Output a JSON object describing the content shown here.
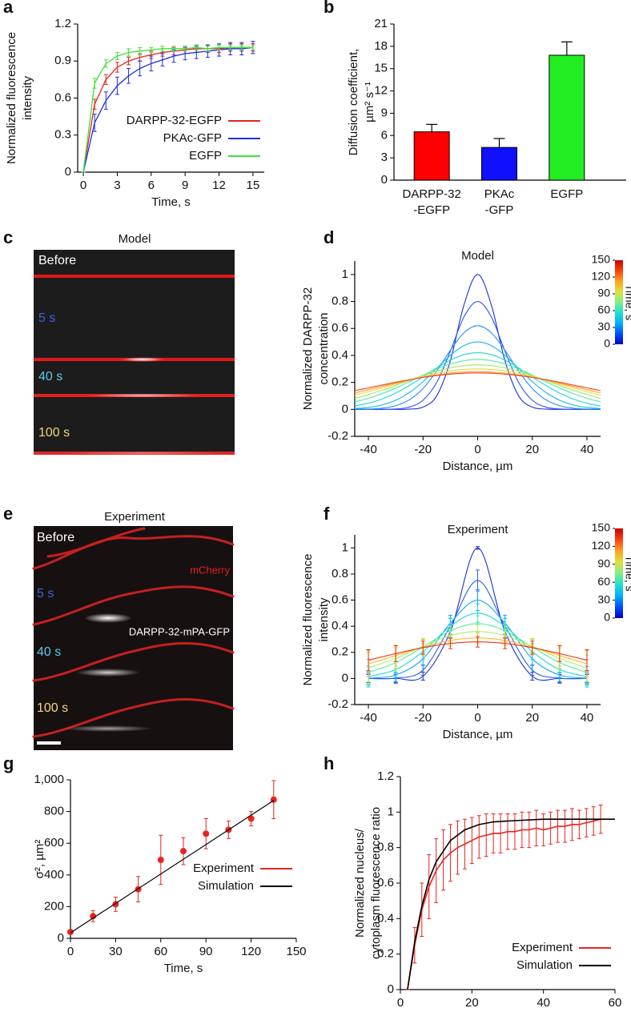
{
  "chart_data": [
    {
      "panel": "a",
      "type": "line",
      "xlabel": "Time, s",
      "ylabel": [
        "Normalized fluorescence",
        "intensity"
      ],
      "x": [
        0,
        1,
        2,
        3,
        4,
        5,
        6,
        7,
        8,
        9,
        10,
        11,
        12,
        13,
        14,
        15
      ],
      "xlim": [
        -0.5,
        16
      ],
      "xticks": [
        0,
        3,
        6,
        9,
        12,
        15
      ],
      "ylim": [
        0,
        1.2
      ],
      "yticks": [
        0,
        0.3,
        0.6,
        0.9,
        1.2
      ],
      "legend": "lower right",
      "series": [
        {
          "name": "DARPP-32-EGFP",
          "color": "#e8231f",
          "values": [
            0,
            0.55,
            0.75,
            0.85,
            0.9,
            0.93,
            0.95,
            0.97,
            0.98,
            0.99,
            1.0,
            1.0,
            1.0,
            1.01,
            1.01,
            1.01
          ],
          "errors": [
            0,
            0.04,
            0.04,
            0.04,
            0.03,
            0.03,
            0.03,
            0.03,
            0.03,
            0.03,
            0.03,
            0.03,
            0.03,
            0.03,
            0.03,
            0.03
          ]
        },
        {
          "name": "PKAc-GFP",
          "color": "#1f2ee0",
          "values": [
            0,
            0.4,
            0.58,
            0.7,
            0.78,
            0.84,
            0.88,
            0.91,
            0.94,
            0.96,
            0.97,
            0.98,
            0.99,
            1.0,
            1.0,
            1.01
          ],
          "errors": [
            0,
            0.07,
            0.07,
            0.07,
            0.06,
            0.06,
            0.06,
            0.05,
            0.05,
            0.05,
            0.05,
            0.05,
            0.05,
            0.05,
            0.05,
            0.05
          ]
        },
        {
          "name": "EGFP",
          "color": "#3ee23a",
          "values": [
            0,
            0.72,
            0.88,
            0.94,
            0.97,
            0.98,
            0.99,
            1.0,
            1.0,
            1.0,
            1.01,
            1.0,
            1.01,
            1.01,
            1.01,
            1.01
          ],
          "errors": [
            0,
            0.04,
            0.03,
            0.03,
            0.03,
            0.03,
            0.02,
            0.02,
            0.02,
            0.02,
            0.02,
            0.02,
            0.02,
            0.02,
            0.02,
            0.02
          ]
        }
      ]
    },
    {
      "panel": "b",
      "type": "bar",
      "ylabel": [
        "Diffusion coefficient,",
        "µm² s⁻¹"
      ],
      "categories": [
        [
          "DARPP-32",
          "-EGFP"
        ],
        [
          "PKAc",
          "-GFP"
        ],
        [
          "EGFP"
        ]
      ],
      "values": [
        6.5,
        4.4,
        16.8
      ],
      "errors": [
        1.0,
        1.2,
        1.8
      ],
      "colors": [
        "#ff0000",
        "#1010ff",
        "#22ee22"
      ],
      "ylim": [
        0,
        21
      ],
      "yticks": [
        0,
        3,
        6,
        9,
        12,
        15,
        18,
        21
      ]
    },
    {
      "panel": "d",
      "type": "line",
      "title": "Model",
      "smooth": true,
      "xlabel": "Distance, µm",
      "ylabel": [
        "Normalized DARPP-32",
        "concentration"
      ],
      "x": [
        -45,
        -40,
        -35,
        -30,
        -25,
        -20,
        -15,
        -10,
        -5,
        0,
        5,
        10,
        15,
        20,
        25,
        30,
        35,
        40,
        45
      ],
      "xlim": [
        -45,
        45
      ],
      "xticks": [
        -40,
        -20,
        0,
        20,
        40
      ],
      "ylim": [
        -0.2,
        1.1
      ],
      "yticks": [
        -0.2,
        0,
        0.2,
        0.4,
        0.6,
        0.8,
        1
      ],
      "colorbar": {
        "label": "Time, s",
        "lim": [
          0,
          150
        ],
        "ticks": [
          0,
          30,
          60,
          90,
          120,
          150
        ],
        "colors": [
          "#0000c8",
          "#0050ff",
          "#00b0ff",
          "#20e0d0",
          "#80f080",
          "#e0e040",
          "#ffa020",
          "#ff4010",
          "#c80000"
        ]
      },
      "series": [
        {
          "color": "#1a2fd8",
          "values": [
            0,
            0,
            0,
            0,
            0.002,
            0.017,
            0.1,
            0.36,
            0.775,
            1,
            0.775,
            0.36,
            0.1,
            0.017,
            0.002,
            0,
            0,
            0,
            0
          ]
        },
        {
          "color": "#2a55f0",
          "values": [
            0,
            0,
            0,
            0.003,
            0.017,
            0.068,
            0.199,
            0.431,
            0.686,
            0.8,
            0.686,
            0.431,
            0.199,
            0.068,
            0.017,
            0.003,
            0,
            0,
            0
          ]
        },
        {
          "color": "#1e8ef5",
          "values": [
            0.001,
            0.002,
            0.009,
            0.027,
            0.071,
            0.155,
            0.284,
            0.438,
            0.568,
            0.62,
            0.568,
            0.438,
            0.284,
            0.155,
            0.071,
            0.027,
            0.009,
            0.002,
            0.001
          ]
        },
        {
          "color": "#10b8f0",
          "values": [
            0.006,
            0.014,
            0.033,
            0.068,
            0.125,
            0.206,
            0.303,
            0.4,
            0.473,
            0.5,
            0.473,
            0.4,
            0.303,
            0.206,
            0.125,
            0.068,
            0.033,
            0.014,
            0.006
          ]
        },
        {
          "color": "#20d8d0",
          "values": [
            0.025,
            0.046,
            0.077,
            0.121,
            0.177,
            0.241,
            0.307,
            0.365,
            0.406,
            0.42,
            0.406,
            0.365,
            0.307,
            0.241,
            0.177,
            0.121,
            0.077,
            0.046,
            0.025
          ]
        },
        {
          "color": "#50e8a0",
          "values": [
            0.055,
            0.082,
            0.116,
            0.158,
            0.205,
            0.254,
            0.299,
            0.337,
            0.361,
            0.37,
            0.361,
            0.337,
            0.299,
            0.254,
            0.205,
            0.158,
            0.116,
            0.082,
            0.055
          ]
        },
        {
          "color": "#a0e860",
          "values": [
            0.082,
            0.11,
            0.142,
            0.178,
            0.215,
            0.251,
            0.283,
            0.308,
            0.324,
            0.33,
            0.324,
            0.308,
            0.283,
            0.251,
            0.215,
            0.178,
            0.142,
            0.11,
            0.082
          ]
        },
        {
          "color": "#e8d840",
          "values": [
            0.105,
            0.131,
            0.159,
            0.188,
            0.217,
            0.244,
            0.267,
            0.285,
            0.296,
            0.3,
            0.296,
            0.285,
            0.267,
            0.244,
            0.217,
            0.188,
            0.159,
            0.131,
            0.105
          ]
        },
        {
          "color": "#ff9a28",
          "values": [
            0.122,
            0.146,
            0.17,
            0.194,
            0.217,
            0.238,
            0.255,
            0.269,
            0.277,
            0.28,
            0.277,
            0.269,
            0.255,
            0.238,
            0.217,
            0.194,
            0.17,
            0.146,
            0.122
          ]
        },
        {
          "color": "#f04018",
          "values": [
            0.139,
            0.16,
            0.18,
            0.201,
            0.22,
            0.237,
            0.251,
            0.261,
            0.268,
            0.27,
            0.268,
            0.261,
            0.251,
            0.237,
            0.22,
            0.201,
            0.18,
            0.16,
            0.139
          ]
        }
      ]
    },
    {
      "panel": "f",
      "type": "line",
      "title": "Experiment",
      "smooth": true,
      "xlabel": "Distance, µm",
      "ylabel": [
        "Normalized fluorescence",
        "intensity"
      ],
      "x": [
        -40,
        -30,
        -20,
        -10,
        0,
        10,
        20,
        30,
        40
      ],
      "xlim": [
        -45,
        45
      ],
      "xticks": [
        -40,
        -20,
        0,
        20,
        40
      ],
      "ylim": [
        -0.2,
        1.1
      ],
      "yticks": [
        -0.2,
        0,
        0.2,
        0.4,
        0.6,
        0.8,
        1
      ],
      "colorbar": {
        "label": "Time, s",
        "lim": [
          0,
          150
        ],
        "ticks": [
          0,
          30,
          60,
          90,
          120,
          150
        ],
        "colors": [
          "#0000c8",
          "#0050ff",
          "#00b0ff",
          "#20e0d0",
          "#80f080",
          "#e0e040",
          "#ffa020",
          "#ff4010",
          "#c80000"
        ]
      },
      "series": [
        {
          "color": "#1a2fd8",
          "values": [
            0,
            0,
            0.017,
            0.36,
            1,
            0.36,
            0.017,
            0,
            0
          ],
          "errors": [
            0.03,
            0.03,
            0.03,
            0.05,
            0.01,
            0.05,
            0.03,
            0.03,
            0.03
          ]
        },
        {
          "color": "#2a60f0",
          "values": [
            0,
            0.003,
            0.064,
            0.4,
            0.75,
            0.4,
            0.064,
            0.003,
            0
          ],
          "errors": [
            0.04,
            0.04,
            0.04,
            0.06,
            0.08,
            0.06,
            0.04,
            0.04,
            0.04
          ]
        },
        {
          "color": "#10a8f8",
          "values": [
            0.002,
            0.026,
            0.15,
            0.424,
            0.6,
            0.424,
            0.15,
            0.026,
            0.002
          ],
          "errors": [
            0.05,
            0.05,
            0.05,
            0.06,
            0.08,
            0.06,
            0.05,
            0.05,
            0.05
          ]
        },
        {
          "color": "#18d8e0",
          "values": [
            0.014,
            0.068,
            0.206,
            0.4,
            0.5,
            0.4,
            0.206,
            0.068,
            0.014
          ],
          "errors": [
            0.08,
            0.06,
            0.06,
            0.06,
            0.07,
            0.06,
            0.06,
            0.06,
            0.08
          ]
        },
        {
          "color": "#50f0a0",
          "values": [
            0.046,
            0.121,
            0.241,
            0.365,
            0.42,
            0.365,
            0.241,
            0.121,
            0.046
          ],
          "errors": [
            0.1,
            0.07,
            0.06,
            0.05,
            0.06,
            0.05,
            0.06,
            0.07,
            0.1
          ]
        },
        {
          "color": "#b0f060",
          "values": [
            0.079,
            0.154,
            0.247,
            0.328,
            0.36,
            0.328,
            0.247,
            0.154,
            0.079
          ],
          "errors": [
            0.12,
            0.08,
            0.06,
            0.05,
            0.05,
            0.05,
            0.06,
            0.08,
            0.1
          ]
        },
        {
          "color": "#ffb828",
          "values": [
            0.112,
            0.175,
            0.24,
            0.291,
            0.31,
            0.291,
            0.24,
            0.175,
            0.112
          ],
          "errors": [
            0.1,
            0.08,
            0.06,
            0.04,
            0.04,
            0.04,
            0.06,
            0.08,
            0.1
          ]
        },
        {
          "color": "#f03010",
          "values": [
            0.14,
            0.19,
            0.236,
            0.268,
            0.28,
            0.268,
            0.236,
            0.19,
            0.14
          ],
          "errors": [
            0.08,
            0.06,
            0.05,
            0.04,
            0.04,
            0.04,
            0.05,
            0.06,
            0.08
          ]
        }
      ]
    },
    {
      "panel": "g",
      "type": "line",
      "xlabel": "Time, s",
      "ylabel": [
        "σ², µm²"
      ],
      "xlim": [
        0,
        150
      ],
      "xticks": [
        0,
        30,
        60,
        90,
        120,
        150
      ],
      "ylim": [
        0,
        1000
      ],
      "yticks": [
        0,
        200,
        400,
        600,
        800,
        {
          "value": 1000,
          "label": "1,000"
        }
      ],
      "legend": "lower right",
      "series": [
        {
          "name": "Experiment",
          "color": "#e8231f",
          "style": "points",
          "x": [
            0,
            15,
            30,
            45,
            60,
            75,
            90,
            105,
            120,
            135
          ],
          "values": [
            40,
            140,
            215,
            310,
            495,
            550,
            660,
            685,
            755,
            875
          ],
          "errors": [
            10,
            35,
            45,
            80,
            155,
            85,
            95,
            55,
            45,
            120
          ]
        },
        {
          "name": "Simulation",
          "color": "#000000",
          "x": [
            0,
            135
          ],
          "values": [
            35,
            870
          ]
        }
      ]
    },
    {
      "panel": "h",
      "type": "line",
      "xlabel": "Time, s",
      "ylabel": [
        "Normalized nucleus/",
        "cytoplasm fluorescence ratio"
      ],
      "xlim": [
        0,
        60
      ],
      "xticks": [
        0,
        20,
        40,
        60
      ],
      "ylim": [
        0,
        1.2
      ],
      "yticks": [
        0,
        0.2,
        0.4,
        0.6,
        0.8,
        1,
        1.2
      ],
      "legend": "lower right",
      "series": [
        {
          "name": "Experiment",
          "color": "#e8231f",
          "x": [
            2,
            4,
            6,
            8,
            10,
            12,
            14,
            16,
            18,
            20,
            22,
            24,
            26,
            28,
            30,
            32,
            34,
            36,
            38,
            40,
            42,
            44,
            46,
            48,
            50,
            52,
            54,
            56
          ],
          "values": [
            0,
            0.25,
            0.45,
            0.58,
            0.67,
            0.73,
            0.77,
            0.8,
            0.82,
            0.84,
            0.86,
            0.87,
            0.88,
            0.88,
            0.89,
            0.89,
            0.9,
            0.9,
            0.91,
            0.9,
            0.91,
            0.92,
            0.92,
            0.93,
            0.93,
            0.94,
            0.95,
            0.96
          ],
          "errors": [
            0,
            0.1,
            0.15,
            0.18,
            0.18,
            0.17,
            0.16,
            0.15,
            0.14,
            0.13,
            0.12,
            0.12,
            0.11,
            0.11,
            0.1,
            0.1,
            0.1,
            0.1,
            0.1,
            0.09,
            0.09,
            0.09,
            0.09,
            0.09,
            0.08,
            0.08,
            0.08,
            0.08
          ]
        },
        {
          "name": "Simulation",
          "color": "#000000",
          "x": [
            2,
            4,
            6,
            8,
            10,
            14,
            18,
            22,
            26,
            30,
            40,
            50,
            60
          ],
          "values": [
            0,
            0.27,
            0.47,
            0.62,
            0.72,
            0.84,
            0.9,
            0.93,
            0.945,
            0.95,
            0.96,
            0.96,
            0.96
          ]
        }
      ]
    }
  ],
  "images": [
    {
      "panel": "c",
      "title": "Model",
      "labels": [
        "Before",
        "5 s",
        "40 s",
        "100 s"
      ]
    },
    {
      "panel": "e",
      "title": "Experiment",
      "labels": [
        "Before",
        "5 s",
        "40 s",
        "100 s"
      ],
      "annotations": [
        "mCherry",
        "DARPP-32-mPA-GFP"
      ]
    }
  ]
}
